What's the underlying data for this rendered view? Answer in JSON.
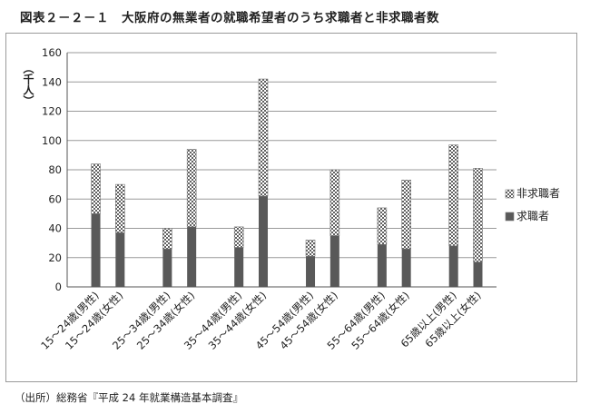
{
  "title": "図表２－２－１　大阪府の無業者の就職希望者のうち求職者と非求職者数",
  "source": "（出所）総務省『平成 24 年就業構造基本調査』",
  "chart_data": {
    "type": "bar",
    "stacked": true,
    "ylabel": "（千人）",
    "ylim": [
      0,
      160
    ],
    "yticks": [
      0,
      20,
      40,
      60,
      80,
      100,
      120,
      140,
      160
    ],
    "grid": true,
    "legend": "right",
    "categories": [
      "15～24歳(男性)",
      "15～24歳(女性)",
      "25～34歳(男性)",
      "25～34歳(女性)",
      "35～44歳(男性)",
      "35～44歳(女性)",
      "45～54歳(男性)",
      "45～54歳(女性)",
      "55～64歳(男性)",
      "55～64歳(女性)",
      "65歳以上(男性)",
      "65歳以上(女性)"
    ],
    "series": [
      {
        "name": "求職者",
        "color": "#595959",
        "pattern": "solid",
        "values": [
          50,
          37,
          26,
          41,
          27,
          62,
          21,
          35,
          29,
          26,
          28,
          17
        ]
      },
      {
        "name": "非求職者",
        "color": "#595959",
        "pattern": "checker",
        "values": [
          34,
          33,
          14,
          53,
          14,
          80,
          11,
          45,
          25,
          47,
          69,
          64
        ]
      }
    ]
  }
}
